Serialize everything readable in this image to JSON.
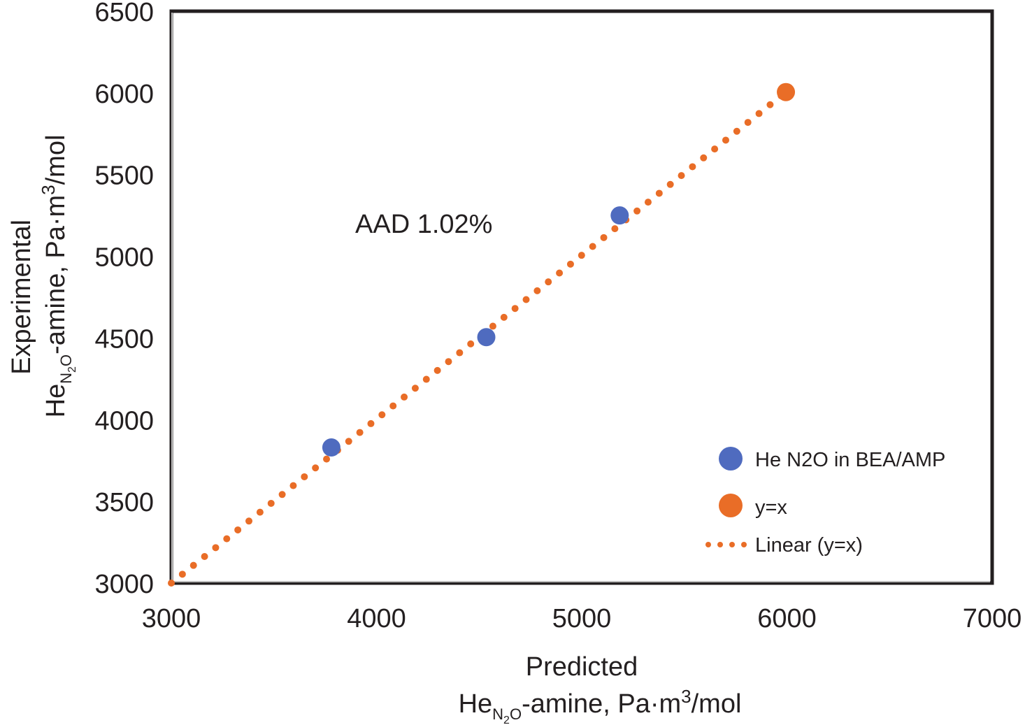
{
  "chart_data": {
    "type": "scatter",
    "title": "",
    "xlabel": {
      "line1": "Predicted",
      "line2_main": "He",
      "line2_sub": "N",
      "line2_sub2": "2",
      "line2_sub3": "O",
      "line2_rest": "-amine, Pa·m",
      "line2_sup": "3",
      "line2_end": "/mol"
    },
    "ylabel": {
      "line1": "Experimental",
      "line2_main": "He",
      "line2_sub": "N",
      "line2_sub2": "2",
      "line2_sub3": "O",
      "line2_rest": "-amine, Pa·m",
      "line2_sup": "3",
      "line2_end": "/mol"
    },
    "xlim": [
      3000,
      7000
    ],
    "ylim": [
      3000,
      6500
    ],
    "xticks": [
      "3000",
      "4000",
      "5000",
      "6000",
      "7000"
    ],
    "yticks": [
      "3000",
      "3500",
      "4000",
      "4500",
      "5000",
      "5500",
      "6000",
      "6500"
    ],
    "grid": false,
    "legend_position": "bottom-right",
    "series": [
      {
        "name": "He N2O in BEA/AMP",
        "kind": "points",
        "color": "#4f6bbf",
        "points": [
          {
            "x": 3780,
            "y": 3830
          },
          {
            "x": 4535,
            "y": 4505
          },
          {
            "x": 5185,
            "y": 5250
          }
        ]
      },
      {
        "name": "y=x",
        "kind": "points",
        "color": "#e96d27",
        "points": [
          {
            "x": 5995,
            "y": 6005
          }
        ]
      },
      {
        "name": "Linear (y=x)",
        "kind": "dotted-line",
        "color": "#e96d27",
        "points": [
          {
            "x": 3000,
            "y": 3000
          },
          {
            "x": 5995,
            "y": 6005
          }
        ]
      }
    ],
    "annotations": [
      {
        "text": "AAD 1.02%"
      }
    ]
  }
}
